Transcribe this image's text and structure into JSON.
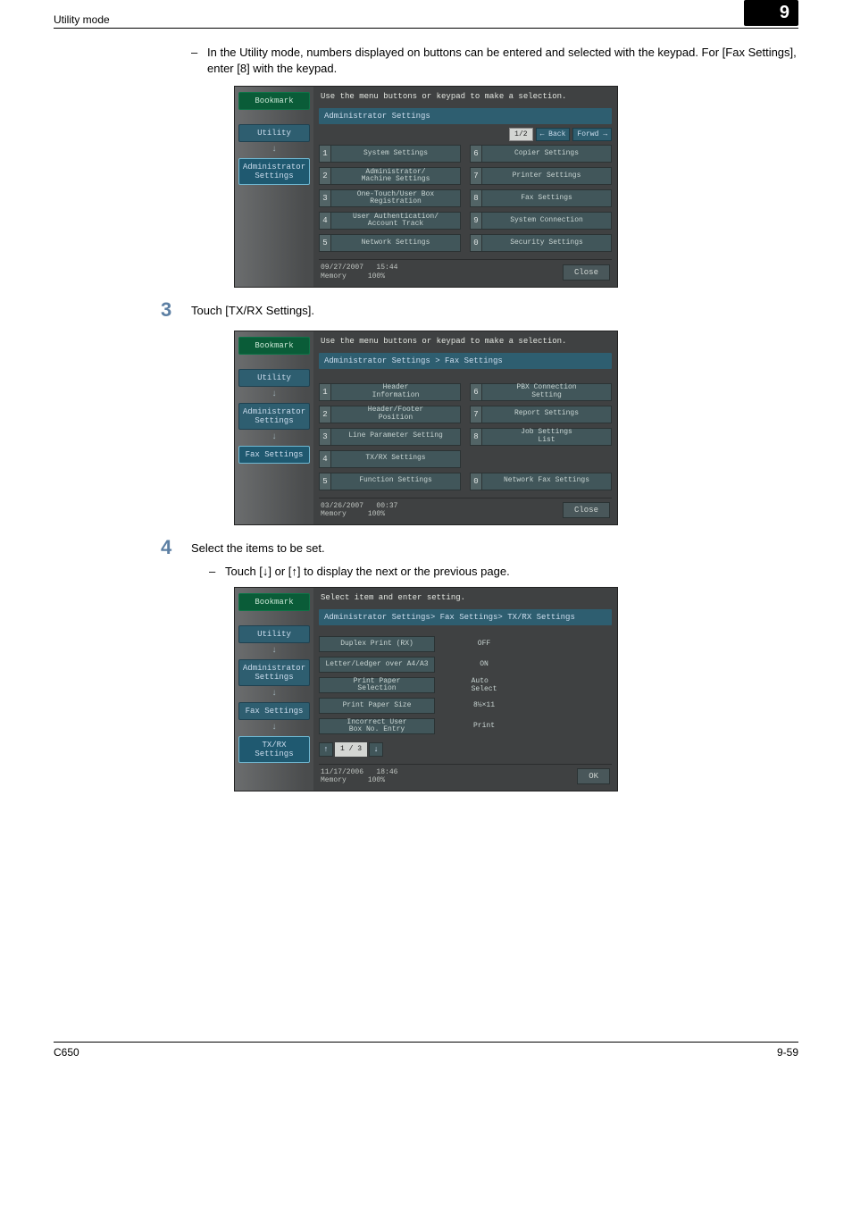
{
  "header": {
    "section": "Utility mode",
    "chapter": "9"
  },
  "intro_note": "In the Utility mode, numbers displayed on buttons can be entered and selected with the keypad. For [Fax Settings], enter [8] with the keypad.",
  "screen1": {
    "instruction": "Use the menu buttons or keypad to make a selection.",
    "bookmark": "Bookmark",
    "breadcrumb": [
      "Utility",
      "Administrator Settings"
    ],
    "title": "Administrator Settings",
    "pager": {
      "page": "1/2",
      "back": "← Back",
      "forward": "Forwd →"
    },
    "left_items": [
      {
        "n": "1",
        "label": "System Settings"
      },
      {
        "n": "2",
        "label": "Administrator/\nMachine Settings"
      },
      {
        "n": "3",
        "label": "One-Touch/User Box\nRegistration"
      },
      {
        "n": "4",
        "label": "User Authentication/\nAccount Track"
      },
      {
        "n": "5",
        "label": "Network Settings"
      }
    ],
    "right_items": [
      {
        "n": "6",
        "label": "Copier Settings"
      },
      {
        "n": "7",
        "label": "Printer Settings"
      },
      {
        "n": "8",
        "label": "Fax Settings"
      },
      {
        "n": "9",
        "label": "System Connection"
      },
      {
        "n": "0",
        "label": "Security Settings"
      }
    ],
    "status": {
      "date": "09/27/2007",
      "time": "15:44",
      "memory_label": "Memory",
      "memory": "100%"
    },
    "close": "Close"
  },
  "step3": {
    "num": "3",
    "text": "Touch [TX/RX Settings]."
  },
  "screen2": {
    "instruction": "Use the menu buttons or keypad to make a selection.",
    "bookmark": "Bookmark",
    "breadcrumb": [
      "Utility",
      "Administrator Settings",
      "Fax Settings"
    ],
    "title": "Administrator Settings  >  Fax Settings",
    "left_items": [
      {
        "n": "1",
        "label": "Header\nInformation"
      },
      {
        "n": "2",
        "label": "Header/Footer\nPosition"
      },
      {
        "n": "3",
        "label": "Line Parameter Setting"
      },
      {
        "n": "4",
        "label": "TX/RX Settings"
      },
      {
        "n": "5",
        "label": "Function Settings"
      }
    ],
    "right_items": [
      {
        "n": "6",
        "label": "PBX Connection\nSetting"
      },
      {
        "n": "7",
        "label": "Report Settings"
      },
      {
        "n": "8",
        "label": "Job Settings\nList"
      },
      {
        "n": "0",
        "label": "Network Fax Settings"
      }
    ],
    "status": {
      "date": "03/26/2007",
      "time": "00:37",
      "memory_label": "Memory",
      "memory": "100%"
    },
    "close": "Close"
  },
  "step4": {
    "num": "4",
    "text": "Select the items to be set.",
    "sub": "Touch [↓] or [↑] to display the next or the previous page."
  },
  "screen3": {
    "instruction": "Select item and enter setting.",
    "bookmark": "Bookmark",
    "breadcrumb": [
      "Utility",
      "Administrator Settings",
      "Fax Settings",
      "TX/RX Settings"
    ],
    "title": "Administrator Settings> Fax Settings> TX/RX Settings",
    "settings": [
      {
        "label": "Duplex Print (RX)",
        "value": "OFF"
      },
      {
        "label": "Letter/Ledger over A4/A3",
        "value": "ON"
      },
      {
        "label": "Print Paper\nSelection",
        "value": "Auto\nSelect"
      },
      {
        "label": "Print Paper Size",
        "value": "8½×11"
      },
      {
        "label": "Incorrect User\nBox No. Entry",
        "value": "Print"
      }
    ],
    "pager": {
      "page": "1 / 3"
    },
    "status": {
      "date": "11/17/2006",
      "time": "18:46",
      "memory_label": "Memory",
      "memory": "100%"
    },
    "ok": "OK"
  },
  "footer": {
    "model": "C650",
    "page": "9-59"
  }
}
